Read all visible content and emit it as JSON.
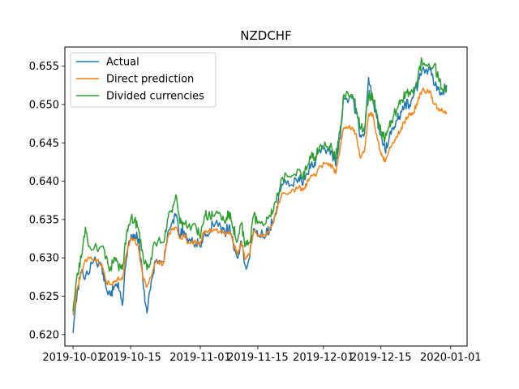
{
  "chart_data": {
    "type": "line",
    "title": "NZDCHF",
    "xlabel": "",
    "ylabel": "",
    "x_ticks": [
      "2019-10-01",
      "2019-10-15",
      "2019-11-01",
      "2019-11-15",
      "2019-12-01",
      "2019-12-15",
      "2020-01-01"
    ],
    "y_ticks": [
      "0.620",
      "0.625",
      "0.630",
      "0.635",
      "0.640",
      "0.645",
      "0.650",
      "0.655"
    ],
    "xlim": [
      "2019-09-29",
      "2020-01-05"
    ],
    "ylim": [
      0.6185,
      0.6575
    ],
    "grid": false,
    "legend_position": "top-left",
    "series": [
      {
        "name": "Actual",
        "color": "#1f77b4",
        "points": [
          [
            "2019-10-01",
            0.6202
          ],
          [
            "2019-10-02",
            0.6255
          ],
          [
            "2019-10-03",
            0.6282
          ],
          [
            "2019-10-04",
            0.6275
          ],
          [
            "2019-10-06",
            0.6295
          ],
          [
            "2019-10-08",
            0.629
          ],
          [
            "2019-10-09",
            0.6262
          ],
          [
            "2019-10-10",
            0.6252
          ],
          [
            "2019-10-11",
            0.6262
          ],
          [
            "2019-10-12",
            0.6268
          ],
          [
            "2019-10-13",
            0.6238
          ],
          [
            "2019-10-14",
            0.63
          ],
          [
            "2019-10-15",
            0.6325
          ],
          [
            "2019-10-16",
            0.633
          ],
          [
            "2019-10-17",
            0.6325
          ],
          [
            "2019-10-18",
            0.627
          ],
          [
            "2019-10-19",
            0.6228
          ],
          [
            "2019-10-20",
            0.6268
          ],
          [
            "2019-10-21",
            0.6295
          ],
          [
            "2019-10-23",
            0.6295
          ],
          [
            "2019-10-24",
            0.633
          ],
          [
            "2019-10-25",
            0.6345
          ],
          [
            "2019-10-26",
            0.6355
          ],
          [
            "2019-10-27",
            0.633
          ],
          [
            "2019-10-28",
            0.6335
          ],
          [
            "2019-10-29",
            0.632
          ],
          [
            "2019-10-31",
            0.632
          ],
          [
            "2019-11-01",
            0.6315
          ],
          [
            "2019-11-02",
            0.6335
          ],
          [
            "2019-11-03",
            0.633
          ],
          [
            "2019-11-04",
            0.6345
          ],
          [
            "2019-11-06",
            0.634
          ],
          [
            "2019-11-07",
            0.6332
          ],
          [
            "2019-11-08",
            0.6342
          ],
          [
            "2019-11-09",
            0.632
          ],
          [
            "2019-11-10",
            0.63
          ],
          [
            "2019-11-11",
            0.6322
          ],
          [
            "2019-11-12",
            0.629
          ],
          [
            "2019-11-13",
            0.63
          ],
          [
            "2019-11-14",
            0.6338
          ],
          [
            "2019-11-15",
            0.633
          ],
          [
            "2019-11-17",
            0.633
          ],
          [
            "2019-11-18",
            0.634
          ],
          [
            "2019-11-19",
            0.6352
          ],
          [
            "2019-11-20",
            0.6375
          ],
          [
            "2019-11-21",
            0.6395
          ],
          [
            "2019-11-23",
            0.6395
          ],
          [
            "2019-11-25",
            0.6405
          ],
          [
            "2019-11-26",
            0.6395
          ],
          [
            "2019-11-27",
            0.641
          ],
          [
            "2019-11-28",
            0.6422
          ],
          [
            "2019-11-29",
            0.642
          ],
          [
            "2019-11-30",
            0.6442
          ],
          [
            "2019-12-02",
            0.6442
          ],
          [
            "2019-12-03",
            0.644
          ],
          [
            "2019-12-04",
            0.642
          ],
          [
            "2019-12-05",
            0.6455
          ],
          [
            "2019-12-06",
            0.6508
          ],
          [
            "2019-12-08",
            0.6508
          ],
          [
            "2019-12-09",
            0.6488
          ],
          [
            "2019-12-10",
            0.646
          ],
          [
            "2019-12-11",
            0.6462
          ],
          [
            "2019-12-12",
            0.6535
          ],
          [
            "2019-12-13",
            0.6505
          ],
          [
            "2019-12-14",
            0.6482
          ],
          [
            "2019-12-15",
            0.646
          ],
          [
            "2019-12-16",
            0.644
          ],
          [
            "2019-12-17",
            0.6455
          ],
          [
            "2019-12-18",
            0.647
          ],
          [
            "2019-12-19",
            0.648
          ],
          [
            "2019-12-20",
            0.649
          ],
          [
            "2019-12-21",
            0.65
          ],
          [
            "2019-12-22",
            0.65
          ],
          [
            "2019-12-23",
            0.6512
          ],
          [
            "2019-12-24",
            0.6525
          ],
          [
            "2019-12-25",
            0.6545
          ],
          [
            "2019-12-27",
            0.6545
          ],
          [
            "2019-12-28",
            0.6525
          ],
          [
            "2019-12-29",
            0.652
          ],
          [
            "2019-12-30",
            0.6515
          ],
          [
            "2019-12-31",
            0.6525
          ]
        ]
      },
      {
        "name": "Direct prediction",
        "color": "#ff7f0e",
        "points": [
          [
            "2019-10-01",
            0.6225
          ],
          [
            "2019-10-02",
            0.626
          ],
          [
            "2019-10-03",
            0.628
          ],
          [
            "2019-10-04",
            0.6298
          ],
          [
            "2019-10-06",
            0.6298
          ],
          [
            "2019-10-08",
            0.6292
          ],
          [
            "2019-10-09",
            0.627
          ],
          [
            "2019-10-10",
            0.6265
          ],
          [
            "2019-10-11",
            0.6268
          ],
          [
            "2019-10-12",
            0.6275
          ],
          [
            "2019-10-13",
            0.6272
          ],
          [
            "2019-10-14",
            0.6305
          ],
          [
            "2019-10-15",
            0.6325
          ],
          [
            "2019-10-16",
            0.6325
          ],
          [
            "2019-10-17",
            0.631
          ],
          [
            "2019-10-18",
            0.6275
          ],
          [
            "2019-10-19",
            0.6262
          ],
          [
            "2019-10-20",
            0.6275
          ],
          [
            "2019-10-21",
            0.6293
          ],
          [
            "2019-10-23",
            0.6293
          ],
          [
            "2019-10-24",
            0.6325
          ],
          [
            "2019-10-25",
            0.6338
          ],
          [
            "2019-10-26",
            0.634
          ],
          [
            "2019-10-27",
            0.6325
          ],
          [
            "2019-10-28",
            0.633
          ],
          [
            "2019-10-29",
            0.632
          ],
          [
            "2019-10-31",
            0.632
          ],
          [
            "2019-11-01",
            0.632
          ],
          [
            "2019-11-02",
            0.6335
          ],
          [
            "2019-11-03",
            0.6335
          ],
          [
            "2019-11-04",
            0.6335
          ],
          [
            "2019-11-06",
            0.6335
          ],
          [
            "2019-11-07",
            0.633
          ],
          [
            "2019-11-08",
            0.6335
          ],
          [
            "2019-11-09",
            0.632
          ],
          [
            "2019-11-10",
            0.6305
          ],
          [
            "2019-11-11",
            0.632
          ],
          [
            "2019-11-12",
            0.6298
          ],
          [
            "2019-11-13",
            0.6305
          ],
          [
            "2019-11-14",
            0.6335
          ],
          [
            "2019-11-15",
            0.6328
          ],
          [
            "2019-11-17",
            0.6328
          ],
          [
            "2019-11-18",
            0.6338
          ],
          [
            "2019-11-19",
            0.635
          ],
          [
            "2019-11-20",
            0.637
          ],
          [
            "2019-11-21",
            0.6385
          ],
          [
            "2019-11-23",
            0.6385
          ],
          [
            "2019-11-25",
            0.6392
          ],
          [
            "2019-11-26",
            0.6388
          ],
          [
            "2019-11-27",
            0.6398
          ],
          [
            "2019-11-28",
            0.6408
          ],
          [
            "2019-11-29",
            0.6408
          ],
          [
            "2019-11-30",
            0.642
          ],
          [
            "2019-12-02",
            0.6422
          ],
          [
            "2019-12-03",
            0.642
          ],
          [
            "2019-12-04",
            0.641
          ],
          [
            "2019-12-05",
            0.644
          ],
          [
            "2019-12-06",
            0.647
          ],
          [
            "2019-12-08",
            0.647
          ],
          [
            "2019-12-09",
            0.6462
          ],
          [
            "2019-12-10",
            0.643
          ],
          [
            "2019-12-11",
            0.644
          ],
          [
            "2019-12-12",
            0.6488
          ],
          [
            "2019-12-13",
            0.6488
          ],
          [
            "2019-12-14",
            0.646
          ],
          [
            "2019-12-15",
            0.6435
          ],
          [
            "2019-12-16",
            0.6425
          ],
          [
            "2019-12-17",
            0.644
          ],
          [
            "2019-12-18",
            0.645
          ],
          [
            "2019-12-19",
            0.6458
          ],
          [
            "2019-12-20",
            0.647
          ],
          [
            "2019-12-21",
            0.648
          ],
          [
            "2019-12-22",
            0.6488
          ],
          [
            "2019-12-23",
            0.649
          ],
          [
            "2019-12-24",
            0.6505
          ],
          [
            "2019-12-25",
            0.6518
          ],
          [
            "2019-12-27",
            0.6518
          ],
          [
            "2019-12-28",
            0.65
          ],
          [
            "2019-12-29",
            0.6495
          ],
          [
            "2019-12-30",
            0.6492
          ],
          [
            "2019-12-31",
            0.649
          ]
        ]
      },
      {
        "name": "Divided currencies",
        "color": "#2ca02c",
        "points": [
          [
            "2019-10-01",
            0.623
          ],
          [
            "2019-10-02",
            0.628
          ],
          [
            "2019-10-03",
            0.63
          ],
          [
            "2019-10-04",
            0.634
          ],
          [
            "2019-10-05",
            0.6315
          ],
          [
            "2019-10-08",
            0.6315
          ],
          [
            "2019-10-09",
            0.63
          ],
          [
            "2019-10-10",
            0.6285
          ],
          [
            "2019-10-11",
            0.63
          ],
          [
            "2019-10-12",
            0.629
          ],
          [
            "2019-10-13",
            0.6285
          ],
          [
            "2019-10-14",
            0.633
          ],
          [
            "2019-10-15",
            0.635
          ],
          [
            "2019-10-16",
            0.635
          ],
          [
            "2019-10-17",
            0.6335
          ],
          [
            "2019-10-18",
            0.6305
          ],
          [
            "2019-10-19",
            0.6285
          ],
          [
            "2019-10-20",
            0.63
          ],
          [
            "2019-10-21",
            0.632
          ],
          [
            "2019-10-23",
            0.632
          ],
          [
            "2019-10-24",
            0.635
          ],
          [
            "2019-10-25",
            0.6362
          ],
          [
            "2019-10-26",
            0.6382
          ],
          [
            "2019-10-27",
            0.6345
          ],
          [
            "2019-10-28",
            0.6345
          ],
          [
            "2019-10-29",
            0.634
          ],
          [
            "2019-10-31",
            0.634
          ],
          [
            "2019-11-01",
            0.6325
          ],
          [
            "2019-11-02",
            0.6355
          ],
          [
            "2019-11-03",
            0.6355
          ],
          [
            "2019-11-04",
            0.6355
          ],
          [
            "2019-11-06",
            0.6355
          ],
          [
            "2019-11-07",
            0.6345
          ],
          [
            "2019-11-08",
            0.636
          ],
          [
            "2019-11-09",
            0.634
          ],
          [
            "2019-11-10",
            0.6322
          ],
          [
            "2019-11-11",
            0.6345
          ],
          [
            "2019-11-12",
            0.6315
          ],
          [
            "2019-11-13",
            0.632
          ],
          [
            "2019-11-14",
            0.6355
          ],
          [
            "2019-11-15",
            0.6345
          ],
          [
            "2019-11-17",
            0.6345
          ],
          [
            "2019-11-18",
            0.6355
          ],
          [
            "2019-11-19",
            0.637
          ],
          [
            "2019-11-20",
            0.6385
          ],
          [
            "2019-11-21",
            0.6405
          ],
          [
            "2019-11-23",
            0.6405
          ],
          [
            "2019-11-25",
            0.6415
          ],
          [
            "2019-11-26",
            0.6405
          ],
          [
            "2019-11-27",
            0.6418
          ],
          [
            "2019-11-28",
            0.6432
          ],
          [
            "2019-11-29",
            0.6432
          ],
          [
            "2019-11-30",
            0.6445
          ],
          [
            "2019-12-02",
            0.6445
          ],
          [
            "2019-12-03",
            0.6445
          ],
          [
            "2019-12-04",
            0.643
          ],
          [
            "2019-12-05",
            0.6465
          ],
          [
            "2019-12-06",
            0.6513
          ],
          [
            "2019-12-08",
            0.6513
          ],
          [
            "2019-12-09",
            0.6495
          ],
          [
            "2019-12-10",
            0.6468
          ],
          [
            "2019-12-11",
            0.647
          ],
          [
            "2019-12-12",
            0.6512
          ],
          [
            "2019-12-13",
            0.651
          ],
          [
            "2019-12-14",
            0.6488
          ],
          [
            "2019-12-15",
            0.6465
          ],
          [
            "2019-12-16",
            0.6455
          ],
          [
            "2019-12-17",
            0.647
          ],
          [
            "2019-12-18",
            0.6485
          ],
          [
            "2019-12-19",
            0.6495
          ],
          [
            "2019-12-20",
            0.6505
          ],
          [
            "2019-12-21",
            0.6515
          ],
          [
            "2019-12-22",
            0.6515
          ],
          [
            "2019-12-23",
            0.6522
          ],
          [
            "2019-12-24",
            0.6535
          ],
          [
            "2019-12-25",
            0.6558
          ],
          [
            "2019-12-26",
            0.6552
          ],
          [
            "2019-12-28",
            0.6552
          ],
          [
            "2019-12-29",
            0.6535
          ],
          [
            "2019-12-30",
            0.652
          ],
          [
            "2019-12-31",
            0.652
          ]
        ]
      }
    ]
  }
}
